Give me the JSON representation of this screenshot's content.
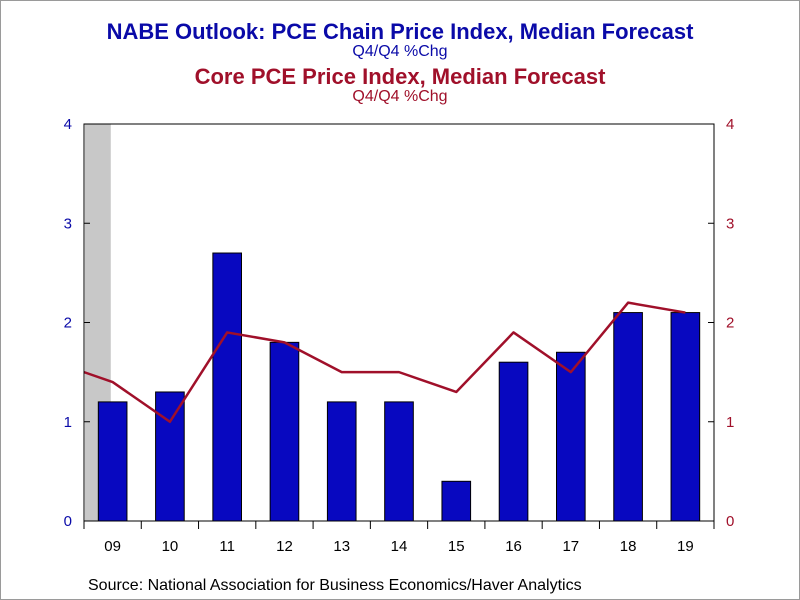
{
  "title_primary": "NABE Outlook: PCE Chain Price Index, Median Forecast",
  "subtitle_primary": "Q4/Q4 %Chg",
  "title_secondary": "Core PCE Price Index, Median Forecast",
  "subtitle_secondary": "Q4/Q4 %Chg",
  "source": "Source:  National Association for Business Economics/Haver Analytics",
  "colors": {
    "bars": "#0808c0",
    "line": "#a0102a",
    "left_axis": "#0a0aa8",
    "right_axis": "#a0102a",
    "recession_shade": "#c8c8c8"
  },
  "chart_data": {
    "type": "bar",
    "categories": [
      "09",
      "10",
      "11",
      "12",
      "13",
      "14",
      "15",
      "16",
      "17",
      "18",
      "19"
    ],
    "series": [
      {
        "name": "NABE Outlook: PCE Chain Price Index, Median Forecast",
        "type": "bar",
        "axis": "left",
        "values": [
          1.2,
          1.3,
          2.7,
          1.8,
          1.2,
          1.2,
          0.4,
          1.6,
          1.7,
          2.1,
          2.1
        ]
      },
      {
        "name": "Core PCE Price Index, Median Forecast",
        "type": "line",
        "axis": "right",
        "values": [
          1.4,
          1.0,
          1.9,
          1.8,
          1.5,
          1.5,
          1.3,
          1.9,
          1.5,
          2.2,
          2.1
        ],
        "start_value": 1.5
      }
    ],
    "ylim": [
      0,
      4
    ],
    "y_ticks": [
      0,
      1,
      2,
      3,
      4
    ],
    "y2lim": [
      0,
      4
    ],
    "y2_ticks": [
      0,
      1,
      2,
      3,
      4
    ],
    "recession_shading": "early 2009",
    "grid": false
  }
}
